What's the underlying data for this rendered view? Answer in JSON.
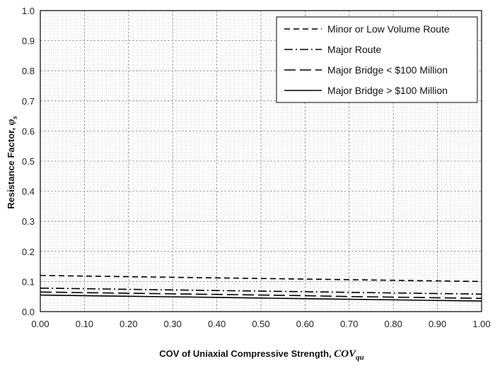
{
  "chart_data": {
    "type": "line",
    "xlabel": "COV of Uniaxial Compressive Strength, ",
    "xlabel_symbol": "COV",
    "xlabel_subscript": "qu",
    "ylabel": "Resistance Factor, ",
    "ylabel_symbol": "φ",
    "ylabel_subscript": "s",
    "xlim": [
      0.0,
      1.0
    ],
    "ylim": [
      0.0,
      1.0
    ],
    "x_ticks": [
      "0.00",
      "0.10",
      "0.20",
      "0.30",
      "0.40",
      "0.50",
      "0.60",
      "0.70",
      "0.80",
      "0.90",
      "1.00"
    ],
    "y_ticks": [
      "0.0",
      "0.1",
      "0.2",
      "0.3",
      "0.4",
      "0.5",
      "0.6",
      "0.7",
      "0.8",
      "0.9",
      "1.0"
    ],
    "grid": "major and minor",
    "legend_position": "top-right",
    "x": [
      0.0,
      0.1,
      0.2,
      0.3,
      0.4,
      0.5,
      0.6,
      0.7,
      0.8,
      0.9,
      1.0
    ],
    "series": [
      {
        "name": "Minor or Low Volume Route",
        "style": "dashed",
        "values": [
          0.12,
          0.118,
          0.116,
          0.114,
          0.112,
          0.11,
          0.108,
          0.106,
          0.104,
          0.102,
          0.1
        ]
      },
      {
        "name": "Major Route",
        "style": "dash-dot",
        "values": [
          0.078,
          0.076,
          0.074,
          0.072,
          0.07,
          0.068,
          0.066,
          0.064,
          0.062,
          0.06,
          0.058
        ]
      },
      {
        "name": "Major Bridge < $100 Million",
        "style": "long-dash",
        "values": [
          0.065,
          0.063,
          0.061,
          0.059,
          0.057,
          0.055,
          0.053,
          0.05,
          0.048,
          0.046,
          0.044
        ]
      },
      {
        "name": "Major Bridge > $100 Million",
        "style": "solid",
        "values": [
          0.055,
          0.053,
          0.051,
          0.049,
          0.047,
          0.045,
          0.043,
          0.041,
          0.039,
          0.037,
          0.035
        ]
      }
    ],
    "colors": {
      "line": "#000000",
      "grid_major": "#8a8a8a",
      "grid_minor": "#b5b5b5"
    }
  }
}
